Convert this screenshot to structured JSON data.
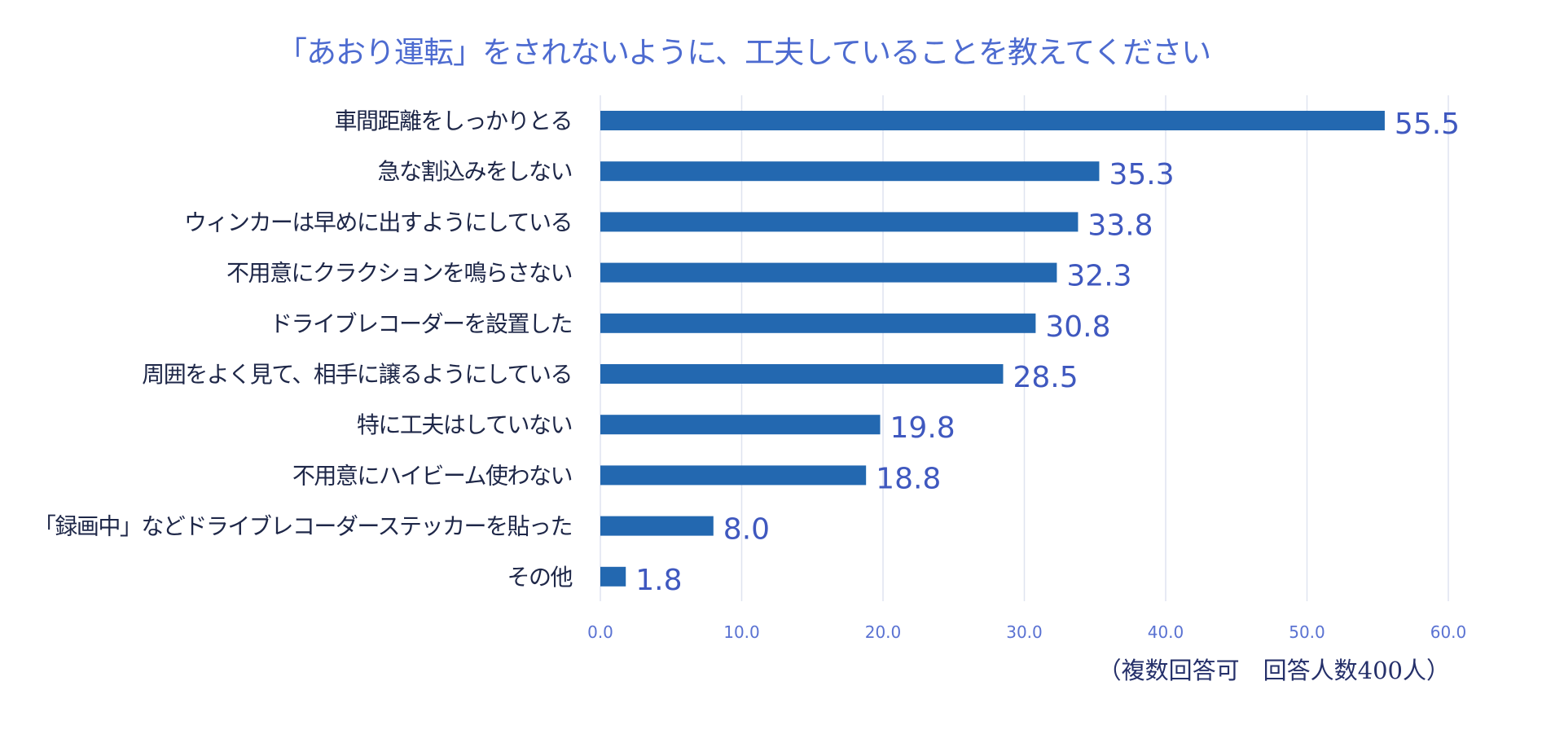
{
  "chart_data": {
    "type": "bar",
    "orientation": "horizontal",
    "title": "「あおり運転」をされないように、工夫していることを教えてください",
    "categories": [
      "車間距離をしっかりとる",
      "急な割込みをしない",
      "ウィンカーは早めに出すようにしている",
      "不用意にクラクションを鳴らさない",
      "ドライブレコーダーを設置した",
      "周囲をよく見て、相手に譲るようにしている",
      "特に工夫はしていない",
      "不用意にハイビーム使わない",
      "「録画中」などドライブレコーダーステッカーを貼った",
      "その他"
    ],
    "values": [
      55.5,
      35.3,
      33.8,
      32.3,
      30.8,
      28.5,
      19.8,
      18.8,
      8.0,
      1.8
    ],
    "value_labels": [
      "55.5",
      "35.3",
      "33.8",
      "32.3",
      "30.8",
      "28.5",
      "19.8",
      "18.8",
      "8.0",
      "1.8"
    ],
    "xlim": [
      0,
      60
    ],
    "xticks": [
      "0.0",
      "10.0",
      "20.0",
      "30.0",
      "40.0",
      "50.0",
      "60.0"
    ],
    "grid": true,
    "note": "（複数回答可　回答人数400人）",
    "colors": {
      "bar": "#2368b0",
      "value_label": "#3f58bf",
      "title": "#4d6bd0",
      "category_label": "#1e2748",
      "tick": "#5a72d2",
      "grid": "#dfe4f0"
    }
  }
}
